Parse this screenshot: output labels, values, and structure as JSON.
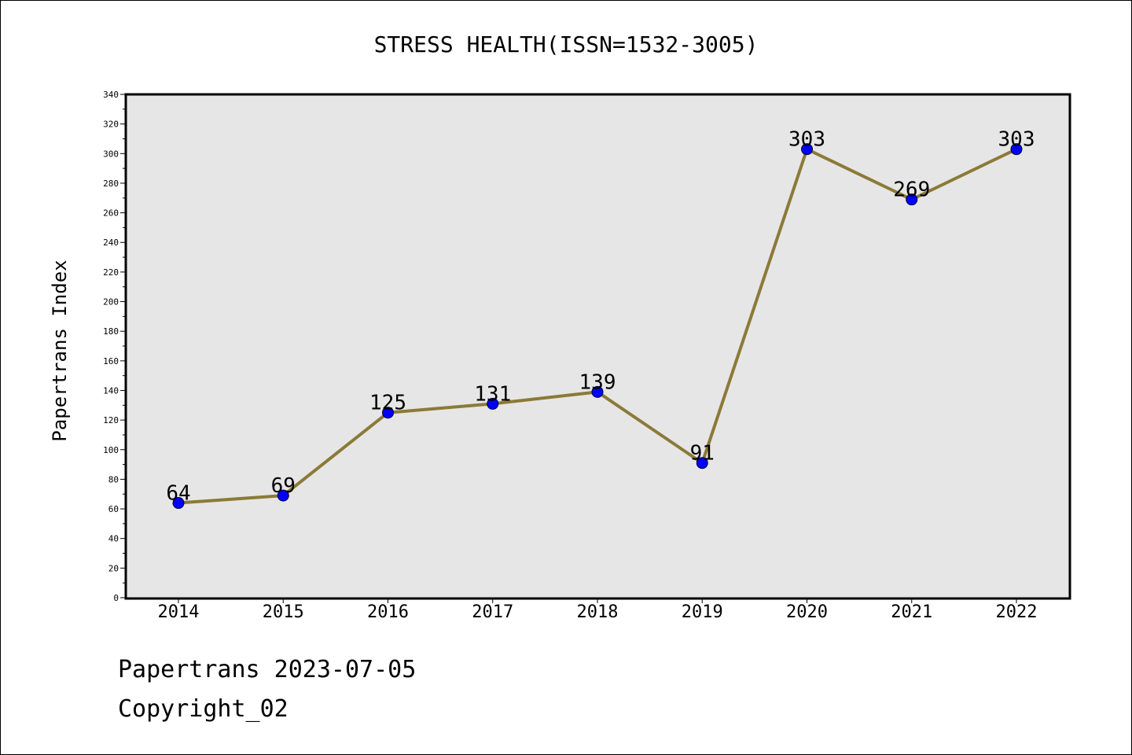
{
  "chart_data": {
    "type": "line",
    "title": "STRESS HEALTH(ISSN=1532-3005)",
    "xlabel": "",
    "ylabel": "Papertrans Index",
    "categories": [
      "2014",
      "2015",
      "2016",
      "2017",
      "2018",
      "2019",
      "2020",
      "2021",
      "2022"
    ],
    "series": [
      {
        "values": [
          64,
          69,
          125,
          131,
          139,
          91,
          303,
          269,
          303
        ]
      }
    ],
    "data_labels": [
      "64",
      "69",
      "125",
      "131",
      "139",
      "91",
      "303",
      "269",
      "303"
    ],
    "ylim": [
      0,
      340
    ],
    "yticks": [
      "0",
      "20",
      "40",
      "60",
      "80",
      "100",
      "120",
      "140",
      "160",
      "180",
      "200",
      "220",
      "240",
      "260",
      "280",
      "300",
      "320",
      "340"
    ],
    "grid": false,
    "legend": "none",
    "colors": {
      "line": "#8B7A38",
      "marker": "#0000FF",
      "plot_background": "#E6E6E6"
    }
  },
  "footer": {
    "date_line": "Papertrans 2023-07-05",
    "copyright": "Copyright_02"
  }
}
